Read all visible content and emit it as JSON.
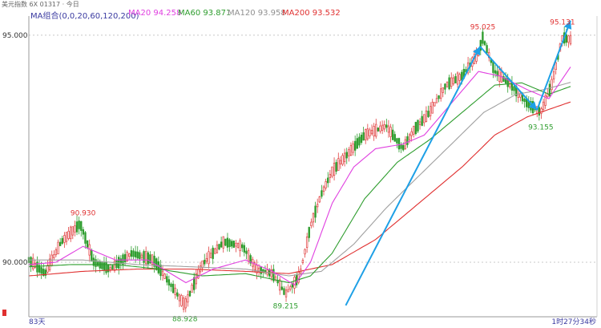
{
  "header": {
    "symbol_title": "美元指数 6X 01317 · 今日",
    "ma_group": "MA组合(0,0,20,60,120,200)",
    "ma20": "MA20 94.258",
    "ma60": "MA60 93.871",
    "ma120": "MA120 93.958",
    "ma200": "MA200 93.532"
  },
  "colors": {
    "ma20": "#e040e0",
    "ma60": "#2e9d2e",
    "ma120": "#a0a0a0",
    "ma200": "#e03030",
    "up": "#e04040",
    "down": "#2e9d2e",
    "arrow": "#1ea0e6",
    "grid": "#c8c8c8",
    "label_red": "#e03030",
    "label_green": "#2e9d2e"
  },
  "footer": {
    "period": "83天",
    "time": "1时27分34秒"
  },
  "chart_data": {
    "type": "candlestick",
    "title": "",
    "xlabel": "",
    "ylabel": "",
    "ylim": [
      88.8,
      95.35
    ],
    "y_ticks": [
      "95.000",
      "90.000"
    ],
    "grid": true,
    "annotations": [
      {
        "label": "90.930",
        "price": 90.93,
        "t": 0.1,
        "kind": "high"
      },
      {
        "label": "88.928",
        "price": 88.928,
        "t": 0.288,
        "kind": "low"
      },
      {
        "label": "89.215",
        "price": 89.215,
        "t": 0.474,
        "kind": "low"
      },
      {
        "label": "95.025",
        "price": 95.025,
        "t": 0.838,
        "kind": "high"
      },
      {
        "label": "93.155",
        "price": 93.155,
        "t": 0.945,
        "kind": "low"
      },
      {
        "label": "95.131",
        "price": 95.131,
        "t": 0.985,
        "kind": "high"
      }
    ],
    "trend_arrows": [
      {
        "from": {
          "t": 0.585,
          "price": 89.05
        },
        "to": {
          "t": 0.833,
          "price": 94.75
        }
      },
      {
        "from": {
          "t": 0.833,
          "price": 94.75
        },
        "to": {
          "t": 0.938,
          "price": 93.35
        }
      },
      {
        "from": {
          "t": 0.938,
          "price": 93.35
        },
        "to": {
          "t": 1.0,
          "price": 95.32
        }
      }
    ],
    "price_anchors": [
      [
        0.0,
        90.05
      ],
      [
        0.03,
        89.75
      ],
      [
        0.06,
        90.45
      ],
      [
        0.095,
        90.85
      ],
      [
        0.12,
        90.0
      ],
      [
        0.15,
        89.85
      ],
      [
        0.19,
        90.2
      ],
      [
        0.23,
        90.05
      ],
      [
        0.265,
        89.45
      ],
      [
        0.288,
        89.05
      ],
      [
        0.32,
        89.95
      ],
      [
        0.36,
        90.45
      ],
      [
        0.395,
        90.35
      ],
      [
        0.42,
        89.85
      ],
      [
        0.45,
        89.75
      ],
      [
        0.474,
        89.3
      ],
      [
        0.5,
        89.7
      ],
      [
        0.52,
        90.8
      ],
      [
        0.54,
        91.5
      ],
      [
        0.56,
        92.0
      ],
      [
        0.59,
        92.4
      ],
      [
        0.62,
        92.8
      ],
      [
        0.66,
        93.0
      ],
      [
        0.69,
        92.5
      ],
      [
        0.71,
        92.9
      ],
      [
        0.74,
        93.3
      ],
      [
        0.77,
        93.9
      ],
      [
        0.8,
        94.1
      ],
      [
        0.83,
        94.6
      ],
      [
        0.838,
        94.95
      ],
      [
        0.86,
        94.2
      ],
      [
        0.89,
        93.9
      ],
      [
        0.92,
        93.5
      ],
      [
        0.945,
        93.3
      ],
      [
        0.965,
        93.9
      ],
      [
        0.985,
        94.95
      ],
      [
        1.0,
        94.9
      ]
    ],
    "ma20": [
      [
        0.0,
        89.95
      ],
      [
        0.05,
        90.0
      ],
      [
        0.1,
        90.35
      ],
      [
        0.16,
        90.05
      ],
      [
        0.22,
        90.05
      ],
      [
        0.29,
        89.55
      ],
      [
        0.34,
        89.85
      ],
      [
        0.4,
        90.05
      ],
      [
        0.45,
        89.8
      ],
      [
        0.49,
        89.5
      ],
      [
        0.52,
        90.0
      ],
      [
        0.56,
        91.3
      ],
      [
        0.6,
        92.1
      ],
      [
        0.64,
        92.5
      ],
      [
        0.69,
        92.6
      ],
      [
        0.73,
        92.8
      ],
      [
        0.78,
        93.5
      ],
      [
        0.83,
        94.2
      ],
      [
        0.87,
        94.1
      ],
      [
        0.92,
        93.8
      ],
      [
        0.96,
        93.6
      ],
      [
        1.0,
        94.3
      ]
    ],
    "ma60": [
      [
        0.0,
        89.9
      ],
      [
        0.08,
        89.95
      ],
      [
        0.16,
        89.95
      ],
      [
        0.24,
        89.85
      ],
      [
        0.32,
        89.7
      ],
      [
        0.4,
        89.75
      ],
      [
        0.48,
        89.55
      ],
      [
        0.52,
        89.7
      ],
      [
        0.56,
        90.2
      ],
      [
        0.62,
        91.4
      ],
      [
        0.68,
        92.2
      ],
      [
        0.74,
        92.7
      ],
      [
        0.8,
        93.3
      ],
      [
        0.86,
        93.9
      ],
      [
        0.91,
        93.95
      ],
      [
        0.96,
        93.7
      ],
      [
        1.0,
        93.87
      ]
    ],
    "ma120": [
      [
        0.0,
        90.05
      ],
      [
        0.1,
        90.05
      ],
      [
        0.2,
        89.95
      ],
      [
        0.3,
        89.9
      ],
      [
        0.4,
        89.85
      ],
      [
        0.48,
        89.7
      ],
      [
        0.54,
        89.8
      ],
      [
        0.6,
        90.4
      ],
      [
        0.66,
        91.2
      ],
      [
        0.72,
        91.9
      ],
      [
        0.78,
        92.6
      ],
      [
        0.84,
        93.3
      ],
      [
        0.9,
        93.7
      ],
      [
        0.95,
        93.8
      ],
      [
        1.0,
        93.96
      ]
    ],
    "ma200": [
      [
        0.0,
        89.7
      ],
      [
        0.1,
        89.8
      ],
      [
        0.2,
        89.85
      ],
      [
        0.3,
        89.85
      ],
      [
        0.4,
        89.8
      ],
      [
        0.48,
        89.75
      ],
      [
        0.56,
        89.95
      ],
      [
        0.64,
        90.5
      ],
      [
        0.72,
        91.3
      ],
      [
        0.8,
        92.1
      ],
      [
        0.86,
        92.8
      ],
      [
        0.92,
        93.2
      ],
      [
        1.0,
        93.53
      ]
    ]
  }
}
